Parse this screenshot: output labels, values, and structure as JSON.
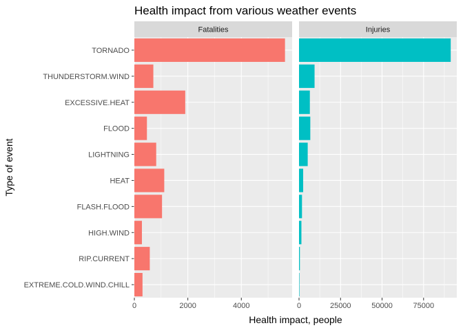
{
  "chart_data": {
    "type": "bar",
    "orientation": "horizontal",
    "title": "Health impact from various weather events",
    "xlabel": "Health impact, people",
    "ylabel": "Type of event",
    "grid": true,
    "legend": "none",
    "categories": [
      "TORNADO",
      "THUNDERSTORM.WIND",
      "EXCESSIVE.HEAT",
      "FLOOD",
      "LIGHTNING",
      "HEAT",
      "FLASH.FLOOD",
      "HIGH.WIND",
      "RIP.CURRENT",
      "EXTREME.COLD.WIND.CHILL"
    ],
    "panels": [
      {
        "name": "Fatalities",
        "color": "#F8766D",
        "xlim": [
          0,
          5900
        ],
        "xticks": [
          0,
          2000,
          4000
        ],
        "values": [
          5633,
          710,
          1903,
          470,
          817,
          1118,
          1035,
          283,
          577,
          305
        ]
      },
      {
        "name": "Injuries",
        "color": "#00BFC4",
        "xlim": [
          0,
          95000
        ],
        "xticks": [
          0,
          25000,
          50000,
          75000
        ],
        "values": [
          91346,
          9353,
          6525,
          6789,
          5230,
          2494,
          1785,
          1439,
          525,
          255
        ]
      }
    ]
  }
}
